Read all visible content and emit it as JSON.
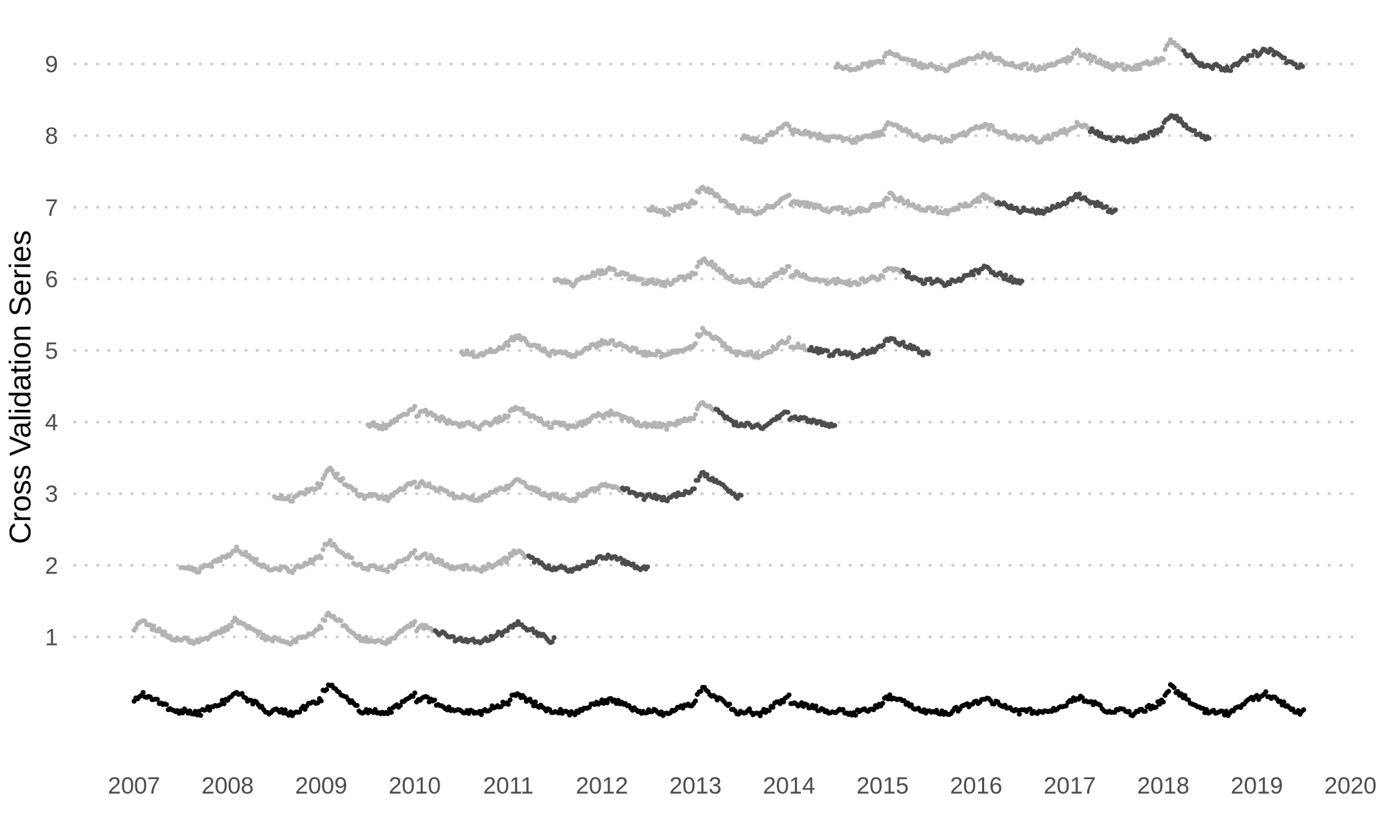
{
  "chart_data": {
    "type": "scatter",
    "title": "",
    "xlabel": "",
    "ylabel": "Cross Validation Series",
    "xlim": [
      2006.7,
      2020.0
    ],
    "ylim": [
      -0.75,
      9.75
    ],
    "x_ticks": [
      2007,
      2008,
      2009,
      2010,
      2011,
      2012,
      2013,
      2014,
      2015,
      2016,
      2017,
      2018,
      2019,
      2020
    ],
    "y_ticks": [
      1,
      2,
      3,
      4,
      5,
      6,
      7,
      8,
      9
    ],
    "grid": "horizontal dotted lines at y ticks",
    "legend": "none",
    "colors": {
      "full_series": "#000000",
      "training": "#b3b3b3",
      "validation": "#4d4d4d",
      "gridline": "#cccccc",
      "tick_text": "#4d4d4d"
    },
    "full_series": {
      "name": "",
      "baseline": 0,
      "x_start": 2007.0,
      "x_end": 2019.5,
      "approx_range": [
        -0.15,
        0.35
      ]
    },
    "series": [
      {
        "cv": 1,
        "train_start": 2007.0,
        "train_end": 2010.2,
        "test_start": 2010.2,
        "test_end": 2011.5
      },
      {
        "cv": 2,
        "train_start": 2007.5,
        "train_end": 2011.2,
        "test_start": 2011.2,
        "test_end": 2012.5
      },
      {
        "cv": 3,
        "train_start": 2008.5,
        "train_end": 2012.2,
        "test_start": 2012.2,
        "test_end": 2013.5
      },
      {
        "cv": 4,
        "train_start": 2009.5,
        "train_end": 2013.2,
        "test_start": 2013.2,
        "test_end": 2014.5
      },
      {
        "cv": 5,
        "train_start": 2010.5,
        "train_end": 2014.2,
        "test_start": 2014.2,
        "test_end": 2015.5
      },
      {
        "cv": 6,
        "train_start": 2011.5,
        "train_end": 2015.2,
        "test_start": 2015.2,
        "test_end": 2016.5
      },
      {
        "cv": 7,
        "train_start": 2012.5,
        "train_end": 2016.2,
        "test_start": 2016.2,
        "test_end": 2017.5
      },
      {
        "cv": 8,
        "train_start": 2013.5,
        "train_end": 2017.2,
        "test_start": 2017.2,
        "test_end": 2018.5
      },
      {
        "cv": 9,
        "train_start": 2014.5,
        "train_end": 2018.2,
        "test_start": 2018.2,
        "test_end": 2019.5
      }
    ]
  }
}
